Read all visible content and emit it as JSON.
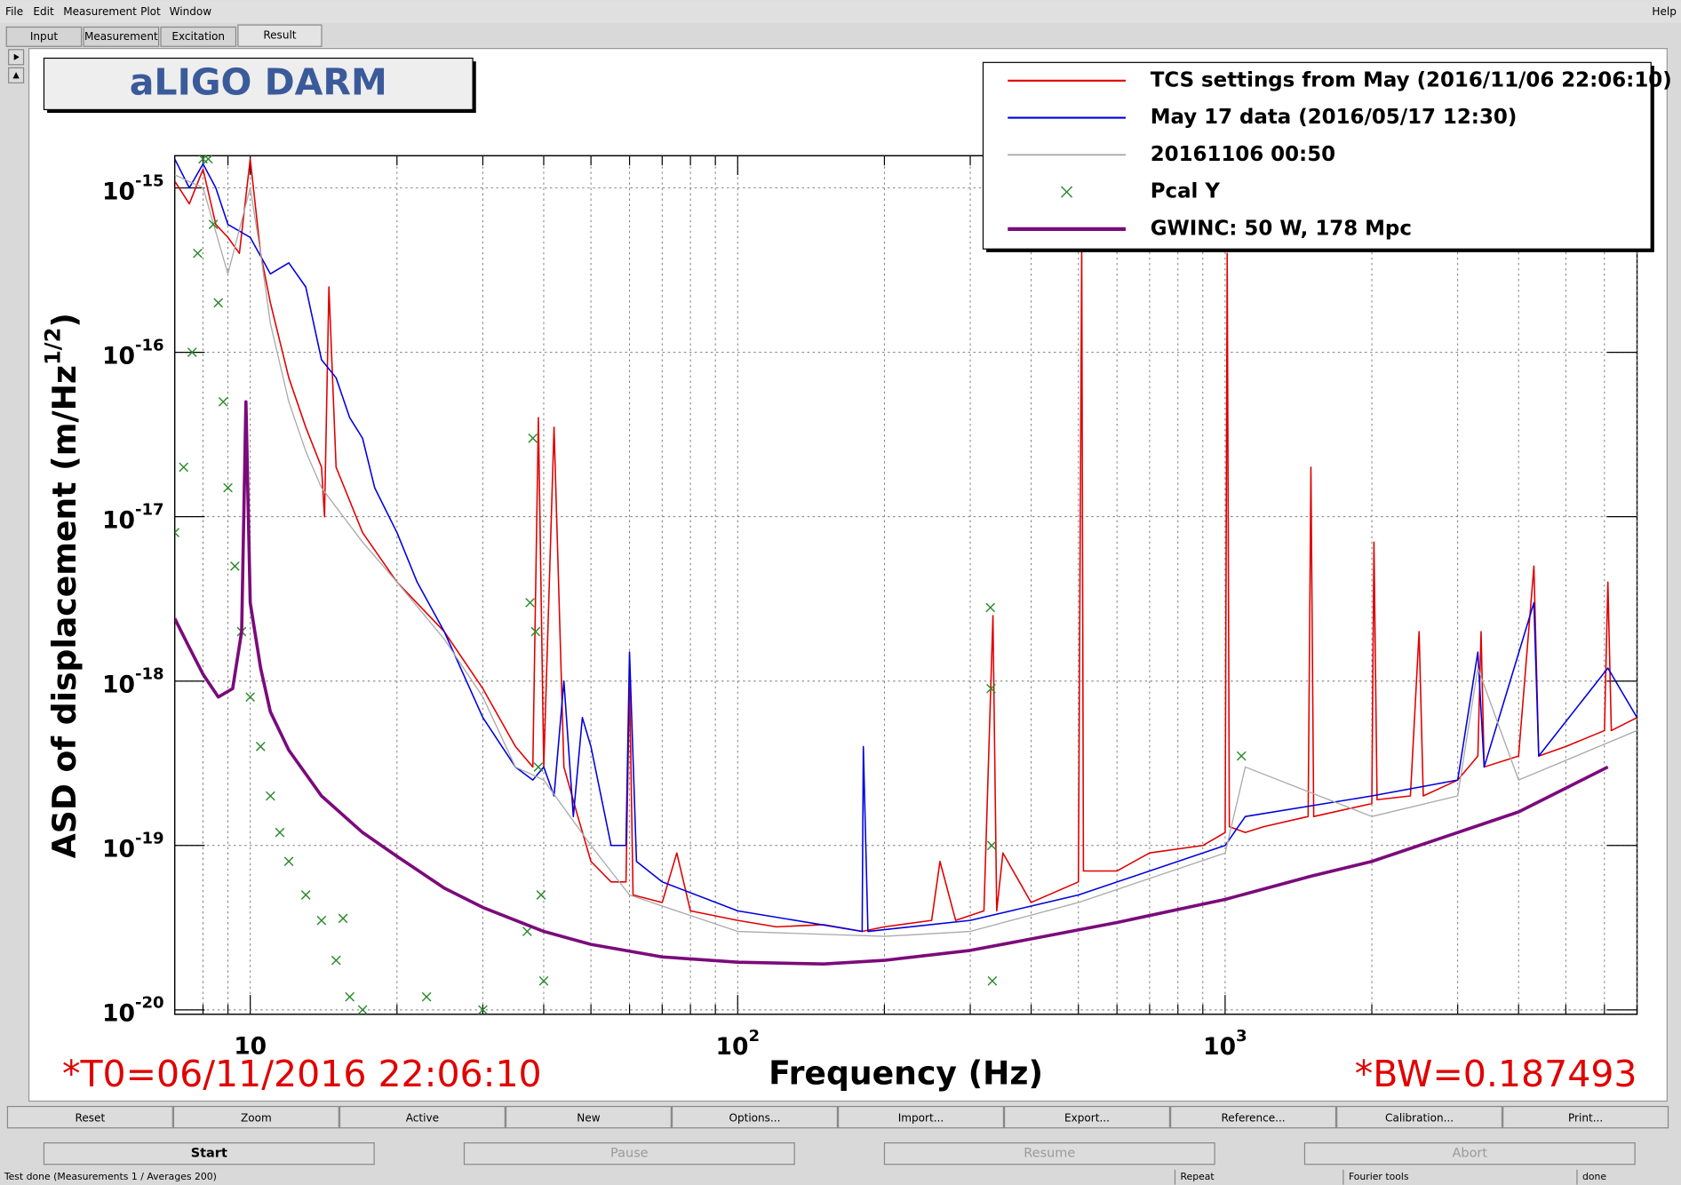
{
  "menu": [
    "File",
    "Edit",
    "Measurement",
    "Plot",
    "Window"
  ],
  "help": "Help",
  "tabs": [
    "Input",
    "Measurement",
    "Excitation",
    "Result"
  ],
  "buttons": [
    "Reset",
    "Zoom",
    "Active",
    "New",
    "Options...",
    "Import...",
    "Export...",
    "Reference...",
    "Calibration...",
    "Print..."
  ],
  "controls": [
    "Start",
    "Pause",
    "Resume",
    "Abort"
  ],
  "status": [
    "Test done (Measurements 1 / Averages 200)",
    "Repeat",
    "Fourier tools",
    "done"
  ],
  "chart_data": {
    "type": "line",
    "title": "aLIGO DARM",
    "xlabel": "Frequency (Hz)",
    "ylabel": {
      "text": "ASD of displacement (m/Hz",
      "superscript": "1/2",
      "suffix": ")"
    },
    "annotations": [
      "*T0=06/11/2016 22:06:10",
      "*BW=0.187493"
    ],
    "xscale": "log",
    "yscale": "log",
    "xlim": [
      7,
      7000
    ],
    "ylim": [
      9.4e-21,
      1.57e-15
    ],
    "xticks": [
      10,
      {
        "value": 100,
        "label": "10",
        "exponent": "2"
      },
      {
        "value": 1000,
        "label": "10",
        "exponent": "3"
      }
    ],
    "xminorticks": [
      8,
      9,
      20,
      30,
      40,
      50,
      60,
      70,
      80,
      90,
      200,
      300,
      400,
      500,
      600,
      700,
      800,
      900,
      2000,
      3000,
      4000,
      5000,
      6000,
      7000
    ],
    "yticks": [
      {
        "value": 1e-20,
        "label": "10",
        "exponent": "-20"
      },
      {
        "value": 1e-19,
        "label": "10",
        "exponent": "-19"
      },
      {
        "value": 1e-18,
        "label": "10",
        "exponent": "-18"
      },
      {
        "value": 1e-17,
        "label": "10",
        "exponent": "-17"
      },
      {
        "value": 1e-16,
        "label": "10",
        "exponent": "-16"
      },
      {
        "value": 1e-15,
        "label": "10",
        "exponent": "-15"
      }
    ],
    "grid": true,
    "legend": "upper right",
    "series": [
      {
        "name": "TCS settings from May (2016/11/06 22:06:10)",
        "color": "#e00000",
        "x": [
          7,
          7.5,
          8,
          8.5,
          9,
          9.5,
          10,
          10.5,
          11,
          12,
          13,
          14,
          14.2,
          14.5,
          15,
          17,
          20,
          25,
          30,
          35,
          38,
          39,
          40,
          42,
          44,
          47,
          50,
          55,
          59,
          60,
          61,
          70,
          75,
          80,
          100,
          120,
          150,
          180,
          200,
          250,
          260,
          280,
          320,
          334,
          340,
          350,
          400,
          500,
          508,
          512,
          600,
          700,
          900,
          1000,
          1010,
          1020,
          1100,
          1200,
          1480,
          1500,
          1520,
          2000,
          2020,
          2050,
          2400,
          2500,
          2550,
          3000,
          3300,
          3350,
          3400,
          4000,
          4300,
          4400,
          5000,
          6000,
          6100,
          6200,
          7000
        ],
        "values": [
          1.1e-15,
          8e-16,
          1.3e-15,
          6e-16,
          5e-16,
          4e-16,
          1.5e-15,
          4e-16,
          2e-16,
          7e-17,
          3.5e-17,
          2e-17,
          1e-17,
          2.5e-16,
          2e-17,
          8e-18,
          4e-18,
          2e-18,
          9e-19,
          4e-19,
          3e-19,
          4e-17,
          3e-19,
          3.5e-17,
          3e-19,
          1.5e-19,
          8e-20,
          6e-20,
          6e-20,
          1e-18,
          5e-20,
          4.5e-20,
          9e-20,
          4e-20,
          3.5e-20,
          3.2e-20,
          3.3e-20,
          3e-20,
          3.2e-20,
          3.5e-20,
          8e-20,
          3.5e-20,
          4e-20,
          2.5e-18,
          4e-20,
          9e-20,
          4.5e-20,
          6e-20,
          4.4e-16,
          7e-20,
          7e-20,
          9e-20,
          1e-19,
          1.2e-19,
          4e-16,
          1.3e-19,
          1.2e-19,
          1.3e-19,
          1.5e-19,
          2e-17,
          1.5e-19,
          1.8e-19,
          7e-18,
          1.9e-19,
          2e-19,
          2e-18,
          2e-19,
          2.5e-19,
          3.5e-19,
          2e-18,
          3e-19,
          3.5e-19,
          5e-18,
          3.5e-19,
          4e-19,
          5e-19,
          4e-18,
          5e-19,
          6e-19
        ]
      },
      {
        "name": "May 17 data (2016/05/17 12:30)",
        "color": "#0000dd",
        "x": [
          7,
          7.5,
          8,
          8.5,
          9,
          10,
          11,
          12,
          13,
          14,
          15,
          16,
          17,
          18,
          20,
          22,
          25,
          30,
          35,
          38,
          40,
          42,
          44,
          46,
          48,
          50,
          55,
          59,
          60,
          62,
          70,
          100,
          180,
          181,
          185,
          300,
          500,
          1000,
          1100,
          2000,
          3000,
          3300,
          3400,
          4300,
          4400,
          6100,
          7000
        ],
        "values": [
          1.5e-15,
          1e-15,
          1.4e-15,
          1e-15,
          6e-16,
          5e-16,
          3e-16,
          3.5e-16,
          2.5e-16,
          9e-17,
          7e-17,
          4e-17,
          3e-17,
          1.5e-17,
          8e-18,
          4e-18,
          2e-18,
          6e-19,
          3e-19,
          2.5e-19,
          3e-19,
          2e-19,
          1e-18,
          1.5e-19,
          6e-19,
          4e-19,
          1e-19,
          1e-19,
          1.5e-18,
          8e-20,
          6e-20,
          4e-20,
          3e-20,
          4e-19,
          3e-20,
          3.5e-20,
          5e-20,
          1e-19,
          1.5e-19,
          2e-19,
          2.5e-19,
          1.5e-18,
          3e-19,
          3e-18,
          3.5e-19,
          1.2e-18,
          6e-19
        ]
      },
      {
        "name": "20161106 00:50",
        "color": "#aaaaaa",
        "x": [
          7,
          8,
          9,
          10,
          10.5,
          11,
          12,
          13,
          14,
          17,
          20,
          25,
          30,
          35,
          40,
          50,
          60,
          100,
          200,
          300,
          500,
          1000,
          1100,
          2000,
          3000,
          3300,
          4000,
          7000
        ],
        "values": [
          1.2e-15,
          1e-15,
          3e-16,
          1e-15,
          4e-16,
          1.5e-16,
          5e-17,
          2.5e-17,
          1.5e-17,
          7e-18,
          4e-18,
          1.8e-18,
          8e-19,
          3e-19,
          2.5e-19,
          1e-19,
          5e-20,
          3e-20,
          2.8e-20,
          3e-20,
          4.5e-20,
          9e-20,
          3e-19,
          1.5e-19,
          2e-19,
          1.2e-18,
          2.5e-19,
          5e-19
        ]
      },
      {
        "name": "Pcal Y",
        "color": "#2a8a2a",
        "marker": "x",
        "x": [
          7,
          7.3,
          7.6,
          7.8,
          8,
          8.2,
          8.4,
          8.6,
          8.8,
          9,
          9.3,
          9.6,
          10,
          10.5,
          11,
          11.5,
          12,
          13,
          14,
          15,
          15.5,
          16,
          17,
          23,
          30,
          37,
          37.5,
          38,
          38.5,
          39,
          39.5,
          40,
          330,
          331,
          332,
          333,
          1080
        ],
        "values": [
          8e-18,
          2e-17,
          1e-16,
          4e-16,
          1.5e-15,
          1.5e-15,
          6e-16,
          2e-16,
          5e-17,
          1.5e-17,
          5e-18,
          2e-18,
          8e-19,
          4e-19,
          2e-19,
          1.2e-19,
          8e-20,
          5e-20,
          3.5e-20,
          2e-20,
          3.6e-20,
          1.2e-20,
          1e-20,
          1.2e-20,
          1e-20,
          3e-20,
          3e-18,
          3e-17,
          2e-18,
          3e-19,
          5e-20,
          1.5e-20,
          2.8e-18,
          9e-19,
          1e-19,
          1.5e-20,
          3.5e-19
        ]
      },
      {
        "name": "GWINC: 50 W, 178 Mpc",
        "color": "#7b0a7b",
        "x": [
          7,
          7.5,
          8,
          8.6,
          9.2,
          9.6,
          9.8,
          10,
          10.5,
          11,
          12,
          14,
          17,
          20,
          25,
          30,
          40,
          50,
          70,
          100,
          150,
          200,
          300,
          400,
          600,
          1000,
          1500,
          2000,
          3000,
          4000,
          6100
        ],
        "values": [
          2.4e-18,
          1.6e-18,
          1.1e-18,
          8e-19,
          9e-19,
          2e-18,
          5e-17,
          3e-18,
          1.2e-18,
          6.5e-19,
          3.8e-19,
          2e-19,
          1.2e-19,
          8.6e-20,
          5.5e-20,
          4.2e-20,
          3e-20,
          2.5e-20,
          2.1e-20,
          1.95e-20,
          1.9e-20,
          2e-20,
          2.3e-20,
          2.7e-20,
          3.4e-20,
          4.7e-20,
          6.5e-20,
          8e-20,
          1.2e-19,
          1.6e-19,
          3e-19
        ]
      }
    ]
  }
}
